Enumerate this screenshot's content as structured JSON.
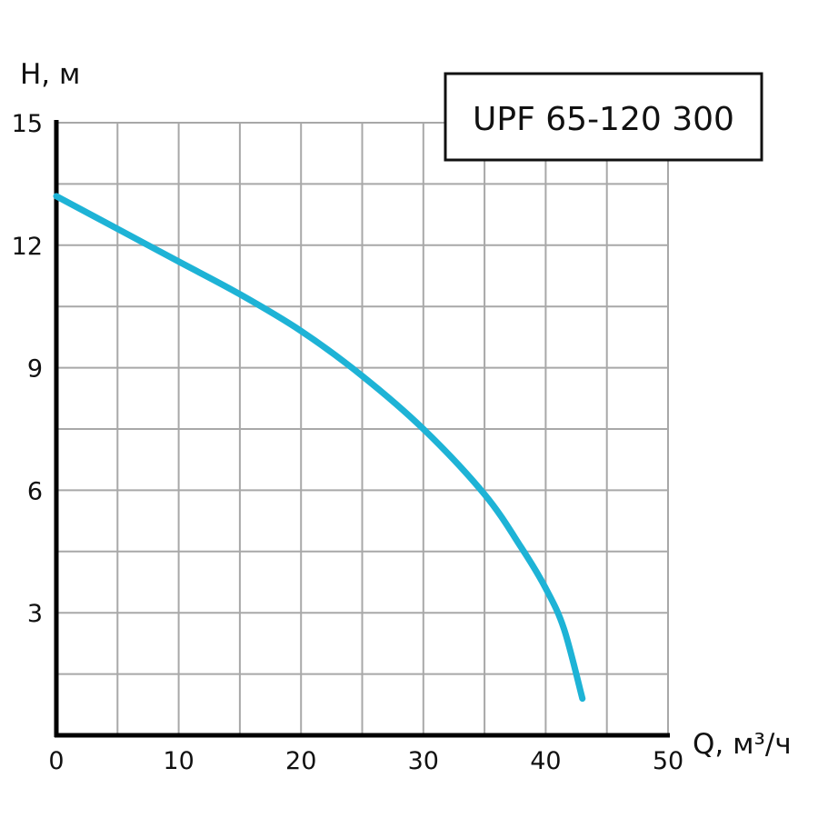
{
  "chart_data": {
    "type": "line",
    "title": "UPF 65-120 300",
    "xlabel": "Q, м³/ч",
    "ylabel": "H, м",
    "xlim": [
      0,
      50
    ],
    "ylim": [
      0,
      15
    ],
    "x_ticks": [
      "0",
      "10",
      "20",
      "30",
      "40",
      "50"
    ],
    "y_ticks": [
      "15",
      "12",
      "9",
      "6",
      "3"
    ],
    "grid": true,
    "series": [
      {
        "x": [
          0,
          5,
          10,
          15,
          20,
          25,
          30,
          35,
          38,
          40,
          41.5,
          43
        ],
        "y": [
          13.2,
          12.4,
          11.6,
          10.8,
          9.9,
          8.8,
          7.5,
          5.9,
          4.6,
          3.6,
          2.6,
          0.9
        ],
        "color": "#1eb3d6"
      }
    ]
  }
}
